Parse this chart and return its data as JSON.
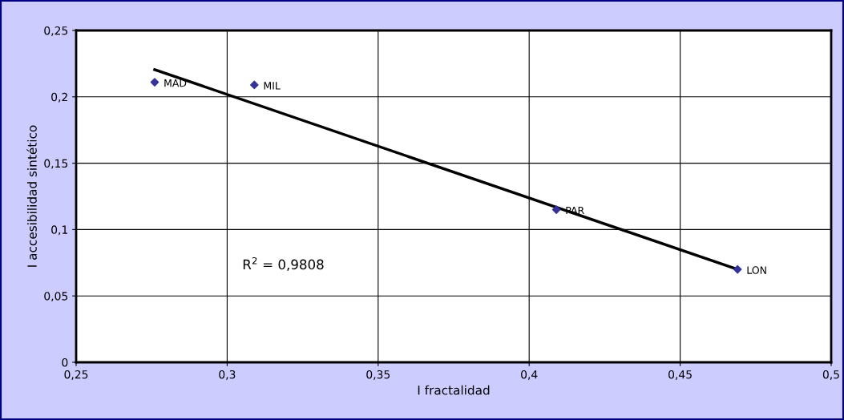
{
  "chart_data": {
    "type": "scatter",
    "xlabel": "I fractalidad",
    "ylabel": "I accesibilidad sintético",
    "series": [
      {
        "color": "#333399",
        "marker": "diamond",
        "x": [
          0.276,
          0.309,
          0.409,
          0.469
        ],
        "values": [
          0.211,
          0.209,
          0.115,
          0.07
        ]
      },
      {
        "type": "line",
        "color": "#000000",
        "marker": "none",
        "line_style": "solid",
        "x": [
          0.276,
          0.469
        ],
        "values": [
          0.2205,
          0.07
        ]
      }
    ],
    "xlim": [
      0.25,
      0.5
    ],
    "ylim": [
      0,
      0.25
    ],
    "xticks": [
      {
        "value": 0.25,
        "label": "0,25"
      },
      {
        "value": 0.3,
        "label": "0,3"
      },
      {
        "value": 0.35,
        "label": "0,35"
      },
      {
        "value": 0.4,
        "label": "0,4"
      },
      {
        "value": 0.45,
        "label": "0,45"
      },
      {
        "value": 0.5,
        "label": "0,5"
      }
    ],
    "yticks": [
      0,
      {
        "value": 0.05,
        "label": "0,05"
      },
      {
        "value": 0.1,
        "label": "0,1"
      },
      {
        "value": 0.15,
        "label": "0,15"
      },
      {
        "value": 0.2,
        "label": "0,2"
      },
      {
        "value": 0.25,
        "label": "0,25"
      }
    ],
    "grid": true,
    "legend": false,
    "annotations": [
      {
        "text": "MAD",
        "x": 0.276,
        "y": 0.211
      },
      {
        "text": "MIL",
        "x": 0.309,
        "y": 0.209
      },
      {
        "text": "PAR",
        "x": 0.409,
        "y": 0.115
      },
      {
        "text": "LON",
        "x": 0.469,
        "y": 0.07
      },
      "R$^{2}$ = 0,9808"
    ]
  }
}
